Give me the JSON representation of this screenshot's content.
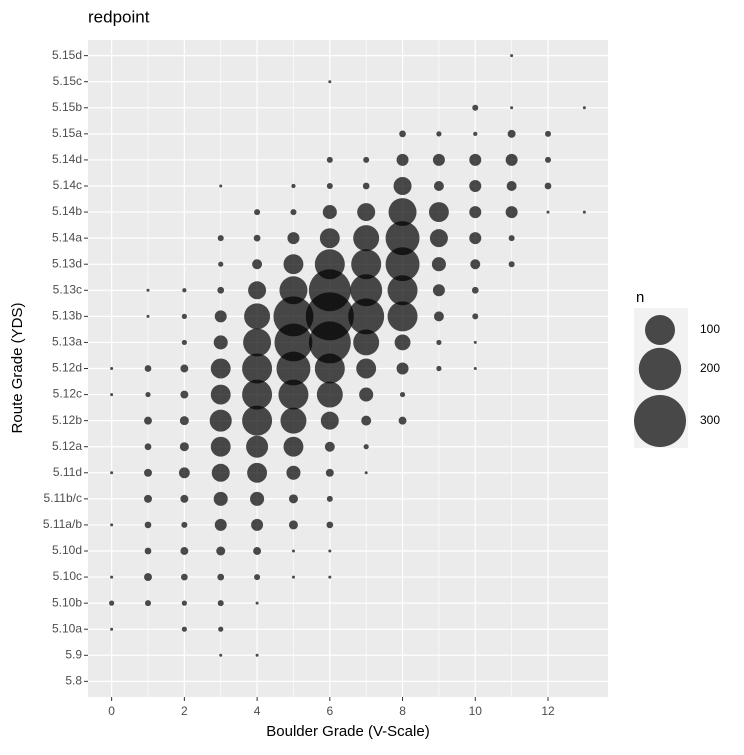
{
  "chart_data": {
    "type": "bubble",
    "title": "redpoint",
    "x_label": "Boulder Grade (V-Scale)",
    "y_label": "Route Grade (YDS)",
    "xlim": [
      -0.65,
      13.65
    ],
    "xticks": [
      0,
      2,
      4,
      6,
      8,
      10,
      12
    ],
    "y_categories": [
      "5.8",
      "5.9",
      "5.10a",
      "5.10b",
      "5.10c",
      "5.10d",
      "5.11a/b",
      "5.11b/c",
      "5.11d",
      "5.12a",
      "5.12b",
      "5.12c",
      "5.12d",
      "5.13a",
      "5.13b",
      "5.13c",
      "5.13d",
      "5.14a",
      "5.14b",
      "5.14c",
      "5.14d",
      "5.15a",
      "5.15b",
      "5.15c",
      "5.15d"
    ],
    "grid": true,
    "size_legend": {
      "title": "n",
      "values": [
        100,
        200,
        300
      ]
    },
    "series": [
      {
        "color": "#000000",
        "x": [
          11,
          6,
          10,
          11,
          13,
          8,
          9,
          10,
          11,
          12,
          6,
          7,
          8,
          9,
          10,
          11,
          12,
          3,
          5,
          6,
          7,
          8,
          9,
          10,
          11,
          12,
          4,
          5,
          6,
          7,
          8,
          9,
          10,
          11,
          12,
          13,
          3,
          4,
          5,
          6,
          7,
          8,
          9,
          10,
          11,
          3,
          4,
          5,
          6,
          7,
          8,
          9,
          10,
          11,
          1,
          2,
          3,
          4,
          5,
          6,
          7,
          8,
          9,
          10,
          1,
          2,
          3,
          4,
          5,
          6,
          7,
          8,
          9,
          10,
          2,
          3,
          4,
          5,
          6,
          7,
          8,
          9,
          10,
          0,
          1,
          2,
          3,
          4,
          5,
          6,
          7,
          8,
          9,
          10,
          0,
          1,
          2,
          3,
          4,
          5,
          6,
          7,
          8,
          1,
          2,
          3,
          4,
          5,
          6,
          7,
          8,
          1,
          2,
          3,
          4,
          5,
          6,
          7,
          0,
          1,
          2,
          3,
          4,
          5,
          6,
          7,
          1,
          2,
          3,
          4,
          5,
          6,
          0,
          1,
          2,
          3,
          4,
          5,
          6,
          1,
          2,
          3,
          4,
          5,
          6,
          0,
          1,
          2,
          3,
          4,
          5,
          6,
          0,
          1,
          2,
          3,
          4,
          0,
          2,
          3,
          3,
          4
        ],
        "y": [
          "5.15d",
          "5.15c",
          "5.15b",
          "5.15b",
          "5.15b",
          "5.15a",
          "5.15a",
          "5.15a",
          "5.15a",
          "5.15a",
          "5.14d",
          "5.14d",
          "5.14d",
          "5.14d",
          "5.14d",
          "5.14d",
          "5.14d",
          "5.14c",
          "5.14c",
          "5.14c",
          "5.14c",
          "5.14c",
          "5.14c",
          "5.14c",
          "5.14c",
          "5.14c",
          "5.14b",
          "5.14b",
          "5.14b",
          "5.14b",
          "5.14b",
          "5.14b",
          "5.14b",
          "5.14b",
          "5.14b",
          "5.14b",
          "5.14a",
          "5.14a",
          "5.14a",
          "5.14a",
          "5.14a",
          "5.14a",
          "5.14a",
          "5.14a",
          "5.14a",
          "5.13d",
          "5.13d",
          "5.13d",
          "5.13d",
          "5.13d",
          "5.13d",
          "5.13d",
          "5.13d",
          "5.13d",
          "5.13c",
          "5.13c",
          "5.13c",
          "5.13c",
          "5.13c",
          "5.13c",
          "5.13c",
          "5.13c",
          "5.13c",
          "5.13c",
          "5.13b",
          "5.13b",
          "5.13b",
          "5.13b",
          "5.13b",
          "5.13b",
          "5.13b",
          "5.13b",
          "5.13b",
          "5.13b",
          "5.13a",
          "5.13a",
          "5.13a",
          "5.13a",
          "5.13a",
          "5.13a",
          "5.13a",
          "5.13a",
          "5.13a",
          "5.12d",
          "5.12d",
          "5.12d",
          "5.12d",
          "5.12d",
          "5.12d",
          "5.12d",
          "5.12d",
          "5.12d",
          "5.12d",
          "5.12d",
          "5.12c",
          "5.12c",
          "5.12c",
          "5.12c",
          "5.12c",
          "5.12c",
          "5.12c",
          "5.12c",
          "5.12c",
          "5.12b",
          "5.12b",
          "5.12b",
          "5.12b",
          "5.12b",
          "5.12b",
          "5.12b",
          "5.12b",
          "5.12a",
          "5.12a",
          "5.12a",
          "5.12a",
          "5.12a",
          "5.12a",
          "5.12a",
          "5.11d",
          "5.11d",
          "5.11d",
          "5.11d",
          "5.11d",
          "5.11d",
          "5.11d",
          "5.11d",
          "5.11b/c",
          "5.11b/c",
          "5.11b/c",
          "5.11b/c",
          "5.11b/c",
          "5.11b/c",
          "5.11a/b",
          "5.11a/b",
          "5.11a/b",
          "5.11a/b",
          "5.11a/b",
          "5.11a/b",
          "5.11a/b",
          "5.10d",
          "5.10d",
          "5.10d",
          "5.10d",
          "5.10d",
          "5.10d",
          "5.10c",
          "5.10c",
          "5.10c",
          "5.10c",
          "5.10c",
          "5.10c",
          "5.10c",
          "5.10b",
          "5.10b",
          "5.10b",
          "5.10b",
          "5.10b",
          "5.10a",
          "5.10a",
          "5.10a",
          "5.9",
          "5.9"
        ],
        "sizes": [
          1,
          1,
          4,
          1,
          1,
          5,
          3,
          2,
          7,
          4,
          4,
          4,
          16,
          16,
          16,
          16,
          4,
          1,
          2,
          4,
          5,
          36,
          11,
          16,
          11,
          5,
          4,
          4,
          22,
          36,
          87,
          44,
          16,
          16,
          1,
          1,
          4,
          5,
          16,
          44,
          75,
          128,
          36,
          16,
          4,
          3,
          11,
          44,
          100,
          100,
          128,
          22,
          11,
          4,
          1,
          2,
          5,
          36,
          87,
          196,
          114,
          100,
          16,
          5,
          1,
          3,
          16,
          75,
          178,
          256,
          144,
          100,
          11,
          4,
          3,
          22,
          87,
          160,
          196,
          75,
          28,
          3,
          1,
          1,
          5,
          7,
          44,
          100,
          128,
          100,
          44,
          16,
          3,
          1,
          1,
          3,
          7,
          44,
          100,
          100,
          75,
          22,
          3,
          7,
          9,
          54,
          100,
          75,
          36,
          11,
          7,
          5,
          9,
          44,
          54,
          44,
          11,
          3,
          1,
          7,
          13,
          36,
          44,
          22,
          7,
          1,
          7,
          7,
          22,
          22,
          9,
          4,
          1,
          5,
          4,
          16,
          16,
          9,
          5,
          5,
          7,
          9,
          7,
          1,
          1,
          1,
          7,
          5,
          5,
          4,
          1,
          1,
          3,
          4,
          3,
          4,
          1,
          1,
          3,
          3,
          1,
          1
        ]
      }
    ]
  }
}
